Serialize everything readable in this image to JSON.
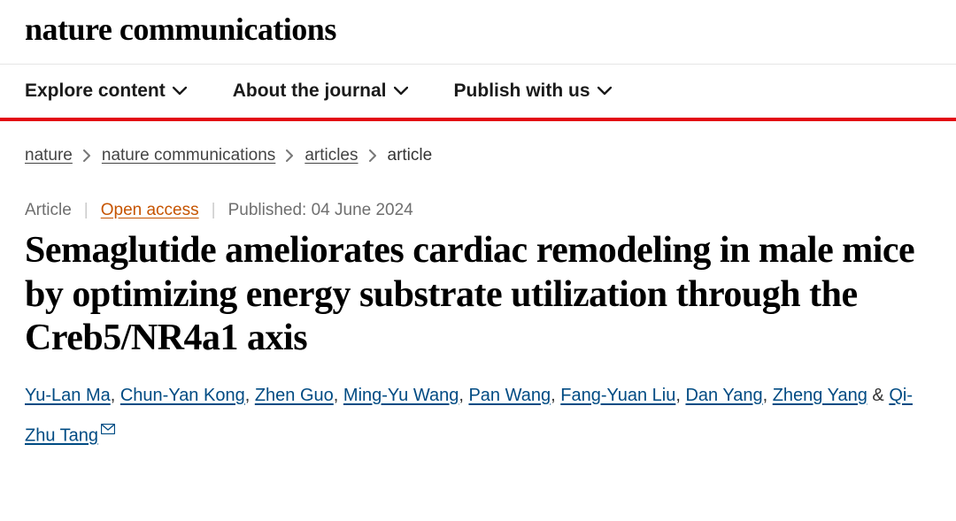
{
  "logo": "nature communications",
  "nav": {
    "items": [
      {
        "label": "Explore content"
      },
      {
        "label": "About the journal"
      },
      {
        "label": "Publish with us"
      }
    ]
  },
  "breadcrumbs": {
    "items": [
      {
        "label": "nature",
        "link": true
      },
      {
        "label": "nature communications",
        "link": true
      },
      {
        "label": "articles",
        "link": true
      },
      {
        "label": "article",
        "link": false
      }
    ]
  },
  "meta": {
    "type": "Article",
    "access": "Open access",
    "published": "Published: 04 June 2024"
  },
  "article": {
    "title": "Semaglutide ameliorates cardiac remodeling in male mice by optimizing energy substrate utilization through the Creb5/NR4a1 axis"
  },
  "authors": [
    {
      "name": "Yu-Lan Ma"
    },
    {
      "name": "Chun-Yan Kong"
    },
    {
      "name": "Zhen Guo"
    },
    {
      "name": "Ming-Yu Wang"
    },
    {
      "name": "Pan Wang"
    },
    {
      "name": "Fang-Yuan Liu"
    },
    {
      "name": "Dan Yang"
    },
    {
      "name": "Zheng Yang"
    },
    {
      "name": "Qi-Zhu Tang",
      "corresponding": true
    }
  ],
  "colors": {
    "accent_red": "#e30613",
    "open_access": "#c65400",
    "link_blue": "#004b83",
    "text_gray": "#6f6f6f"
  }
}
